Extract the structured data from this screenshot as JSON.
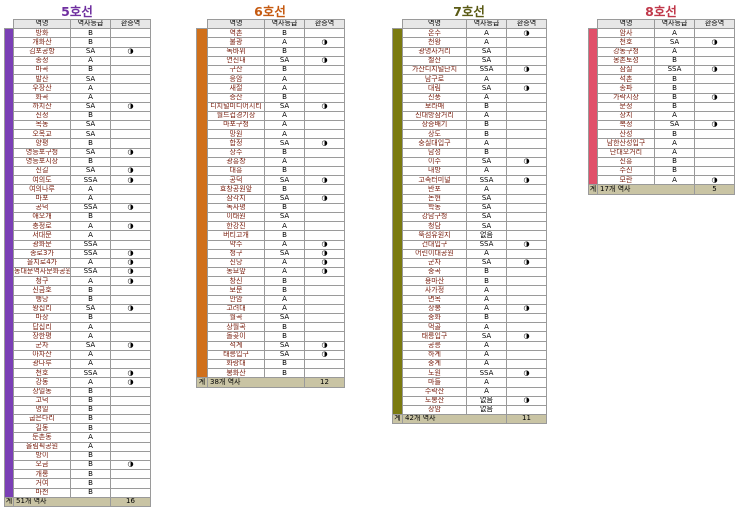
{
  "headers": {
    "station": "역명",
    "grade": "역사등급",
    "transfer": "환승역"
  },
  "lines": [
    {
      "title": "5호선",
      "color": "#7a3fb5",
      "title_color": "#7030a0",
      "stations": [
        [
          "방화",
          "B",
          ""
        ],
        [
          "개화산",
          "B",
          ""
        ],
        [
          "김포공항",
          "SA",
          "◑"
        ],
        [
          "송정",
          "A",
          ""
        ],
        [
          "마곡",
          "B",
          ""
        ],
        [
          "발산",
          "SA",
          ""
        ],
        [
          "우장산",
          "A",
          ""
        ],
        [
          "화곡",
          "A",
          ""
        ],
        [
          "까치산",
          "SA",
          "◑"
        ],
        [
          "신정",
          "B",
          ""
        ],
        [
          "목동",
          "SA",
          ""
        ],
        [
          "오목교",
          "SA",
          ""
        ],
        [
          "양평",
          "B",
          ""
        ],
        [
          "영등포구청",
          "SA",
          "◑"
        ],
        [
          "영등포시장",
          "B",
          ""
        ],
        [
          "신길",
          "SA",
          "◑"
        ],
        [
          "여의도",
          "SSA",
          "◑"
        ],
        [
          "여의나루",
          "A",
          ""
        ],
        [
          "마포",
          "A",
          ""
        ],
        [
          "공덕",
          "SSA",
          "◑"
        ],
        [
          "애오개",
          "B",
          ""
        ],
        [
          "충정로",
          "A",
          "◑"
        ],
        [
          "서대문",
          "A",
          ""
        ],
        [
          "광화문",
          "SSA",
          ""
        ],
        [
          "종로3가",
          "SSA",
          "◑"
        ],
        [
          "을지로4가",
          "A",
          "◑"
        ],
        [
          "동대문역사문화공원",
          "SSA",
          "◑"
        ],
        [
          "청구",
          "A",
          "◑"
        ],
        [
          "신금호",
          "B",
          ""
        ],
        [
          "행당",
          "B",
          ""
        ],
        [
          "왕십리",
          "SA",
          "◑"
        ],
        [
          "마장",
          "B",
          ""
        ],
        [
          "답십리",
          "A",
          ""
        ],
        [
          "장한평",
          "A",
          ""
        ],
        [
          "군자",
          "SA",
          "◑"
        ],
        [
          "아차산",
          "A",
          ""
        ],
        [
          "광나루",
          "A",
          ""
        ],
        [
          "천호",
          "SSA",
          "◑"
        ],
        [
          "강동",
          "A",
          "◑"
        ],
        [
          "상일동",
          "B",
          ""
        ],
        [
          "고덕",
          "B",
          ""
        ],
        [
          "명일",
          "B",
          ""
        ],
        [
          "굽은다리",
          "B",
          ""
        ],
        [
          "길동",
          "B",
          ""
        ],
        [
          "둔촌동",
          "A",
          ""
        ],
        [
          "올림픽공원",
          "A",
          ""
        ],
        [
          "방이",
          "B",
          ""
        ],
        [
          "오금",
          "B",
          "◑"
        ],
        [
          "개롱",
          "B",
          ""
        ],
        [
          "거여",
          "B",
          ""
        ],
        [
          "마천",
          "B",
          ""
        ]
      ],
      "total": {
        "label": "계",
        "count": "51개 역사",
        "transfers": "16"
      }
    },
    {
      "title": "6호선",
      "color": "#d0701b",
      "title_color": "#c55a11",
      "stations": [
        [
          "역촌",
          "B",
          ""
        ],
        [
          "불광",
          "A",
          "◑"
        ],
        [
          "독바위",
          "B",
          ""
        ],
        [
          "연신내",
          "SA",
          "◑"
        ],
        [
          "구산",
          "B",
          ""
        ],
        [
          "응암",
          "A",
          ""
        ],
        [
          "새절",
          "A",
          ""
        ],
        [
          "증산",
          "B",
          ""
        ],
        [
          "디지털미디어시티",
          "SA",
          "◑"
        ],
        [
          "월드컵경기장",
          "A",
          ""
        ],
        [
          "마포구청",
          "A",
          ""
        ],
        [
          "망원",
          "A",
          ""
        ],
        [
          "합정",
          "SA",
          "◑"
        ],
        [
          "상수",
          "B",
          ""
        ],
        [
          "광흥창",
          "A",
          ""
        ],
        [
          "대흥",
          "B",
          ""
        ],
        [
          "공덕",
          "SA",
          "◑"
        ],
        [
          "효창공원앞",
          "B",
          ""
        ],
        [
          "삼각지",
          "SA",
          "◑"
        ],
        [
          "녹사평",
          "B",
          ""
        ],
        [
          "이태원",
          "SA",
          ""
        ],
        [
          "한강진",
          "A",
          ""
        ],
        [
          "버티고개",
          "B",
          ""
        ],
        [
          "약수",
          "A",
          "◑"
        ],
        [
          "청구",
          "SA",
          "◑"
        ],
        [
          "신당",
          "A",
          "◑"
        ],
        [
          "동묘앞",
          "A",
          "◑"
        ],
        [
          "창신",
          "B",
          ""
        ],
        [
          "보문",
          "B",
          ""
        ],
        [
          "안암",
          "A",
          ""
        ],
        [
          "고려대",
          "A",
          ""
        ],
        [
          "월곡",
          "SA",
          ""
        ],
        [
          "상월곡",
          "B",
          ""
        ],
        [
          "돌곶이",
          "B",
          ""
        ],
        [
          "석계",
          "SA",
          "◑"
        ],
        [
          "태릉입구",
          "SA",
          "◑"
        ],
        [
          "화랑대",
          "B",
          ""
        ],
        [
          "봉화산",
          "B",
          ""
        ]
      ],
      "total": {
        "label": "계",
        "count": "38개 역사",
        "transfers": "12"
      }
    },
    {
      "title": "7호선",
      "color": "#7a7a10",
      "title_color": "#5a5a14",
      "stations": [
        [
          "온수",
          "A",
          "◑"
        ],
        [
          "천왕",
          "A",
          ""
        ],
        [
          "광명사거리",
          "SA",
          ""
        ],
        [
          "철산",
          "SA",
          ""
        ],
        [
          "가산디지털단지",
          "SSA",
          "◑"
        ],
        [
          "남구로",
          "A",
          ""
        ],
        [
          "대림",
          "SA",
          "◑"
        ],
        [
          "신풍",
          "A",
          ""
        ],
        [
          "보라매",
          "B",
          ""
        ],
        [
          "신대방삼거리",
          "A",
          ""
        ],
        [
          "장승배기",
          "B",
          ""
        ],
        [
          "상도",
          "B",
          ""
        ],
        [
          "숭실대입구",
          "A",
          ""
        ],
        [
          "남성",
          "B",
          ""
        ],
        [
          "이수",
          "SA",
          "◑"
        ],
        [
          "내방",
          "A",
          ""
        ],
        [
          "고속터미널",
          "SSA",
          "◑"
        ],
        [
          "반포",
          "A",
          ""
        ],
        [
          "논현",
          "SA",
          ""
        ],
        [
          "학동",
          "SA",
          ""
        ],
        [
          "강남구청",
          "SA",
          ""
        ],
        [
          "청담",
          "SA",
          ""
        ],
        [
          "뚝섬유원지",
          "없음",
          ""
        ],
        [
          "건대입구",
          "SSA",
          "◑"
        ],
        [
          "어린이대공원",
          "A",
          ""
        ],
        [
          "군자",
          "SA",
          "◑"
        ],
        [
          "중곡",
          "B",
          ""
        ],
        [
          "용마산",
          "B",
          ""
        ],
        [
          "사가정",
          "A",
          ""
        ],
        [
          "면목",
          "A",
          ""
        ],
        [
          "상봉",
          "A",
          "◑"
        ],
        [
          "중화",
          "B",
          ""
        ],
        [
          "먹골",
          "A",
          ""
        ],
        [
          "태릉입구",
          "SA",
          "◑"
        ],
        [
          "공릉",
          "A",
          ""
        ],
        [
          "하계",
          "A",
          ""
        ],
        [
          "중계",
          "A",
          ""
        ],
        [
          "노원",
          "SSA",
          "◑"
        ],
        [
          "마들",
          "A",
          ""
        ],
        [
          "수락산",
          "A",
          ""
        ],
        [
          "도봉산",
          "없음",
          "◑"
        ],
        [
          "장암",
          "없음",
          ""
        ]
      ],
      "total": {
        "label": "계",
        "count": "42개 역사",
        "transfers": "11"
      }
    },
    {
      "title": "8호선",
      "color": "#e0506a",
      "title_color": "#c0384a",
      "stations": [
        [
          "암사",
          "A",
          ""
        ],
        [
          "천호",
          "SA",
          "◑"
        ],
        [
          "강동구청",
          "A",
          ""
        ],
        [
          "몽촌토성",
          "B",
          ""
        ],
        [
          "잠실",
          "SSA",
          "◑"
        ],
        [
          "석촌",
          "B",
          ""
        ],
        [
          "송파",
          "B",
          ""
        ],
        [
          "가락시장",
          "B",
          "◑"
        ],
        [
          "문정",
          "B",
          ""
        ],
        [
          "장지",
          "A",
          ""
        ],
        [
          "복정",
          "SA",
          "◑"
        ],
        [
          "산성",
          "B",
          ""
        ],
        [
          "남한산성입구",
          "A",
          ""
        ],
        [
          "단대오거리",
          "A",
          ""
        ],
        [
          "신흥",
          "B",
          ""
        ],
        [
          "수진",
          "B",
          ""
        ],
        [
          "모란",
          "A",
          "◑"
        ]
      ],
      "total": {
        "label": "계",
        "count": "17개 역사",
        "transfers": "5"
      }
    }
  ]
}
